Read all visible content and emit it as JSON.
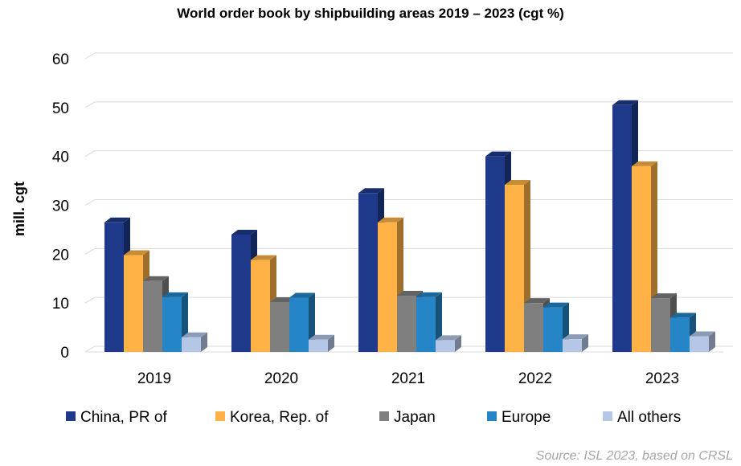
{
  "chart_data": {
    "type": "bar",
    "title": "World order book by shipbuilding areas 2019 – 2023 (cgt %)",
    "xlabel": "",
    "ylabel": "mill. cgt",
    "ylim": [
      0,
      60
    ],
    "yticks": [
      0,
      10,
      20,
      30,
      40,
      50,
      60
    ],
    "grid": true,
    "legend_position": "bottom",
    "categories": [
      "2019",
      "2020",
      "2021",
      "2022",
      "2023"
    ],
    "series": [
      {
        "name": "China, PR of",
        "color": "#1f3a8a",
        "values": [
          26.5,
          24.0,
          32.5,
          40.0,
          50.5
        ]
      },
      {
        "name": "Korea, Rep. of",
        "color": "#ffb347",
        "values": [
          19.8,
          18.8,
          26.5,
          34.2,
          38.0
        ]
      },
      {
        "name": "Japan",
        "color": "#7f7f7f",
        "values": [
          14.5,
          10.2,
          11.5,
          10.0,
          11.0
        ]
      },
      {
        "name": "Europe",
        "color": "#2585c7",
        "values": [
          11.2,
          11.1,
          11.2,
          9.1,
          7.0
        ]
      },
      {
        "name": "All others",
        "color": "#b4c7e7",
        "values": [
          3.0,
          2.5,
          2.4,
          2.6,
          3.2
        ]
      }
    ]
  },
  "source_note": "Source: ISL 2023, based on CRSL"
}
